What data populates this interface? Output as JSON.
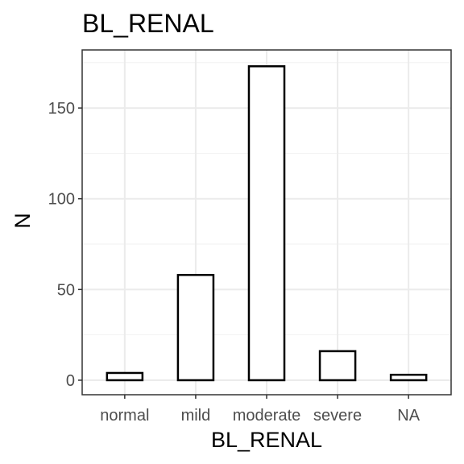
{
  "chart_data": {
    "type": "bar",
    "title": "BL_RENAL",
    "xlabel": "BL_RENAL",
    "ylabel": "N",
    "categories": [
      "normal",
      "mild",
      "moderate",
      "severe",
      "NA"
    ],
    "values": [
      4,
      58,
      173,
      16,
      3
    ],
    "ylim": [
      -8,
      182
    ],
    "yticks": [
      0,
      50,
      100,
      150
    ],
    "grid": true,
    "legend": "none",
    "colors": {
      "bar_fill": "#ffffff",
      "bar_stroke": "#000000",
      "panel_border": "#333333",
      "grid_major": "#ebebeb",
      "grid_minor": "#f2f2f2",
      "tick_text": "#4d4d4d"
    }
  }
}
